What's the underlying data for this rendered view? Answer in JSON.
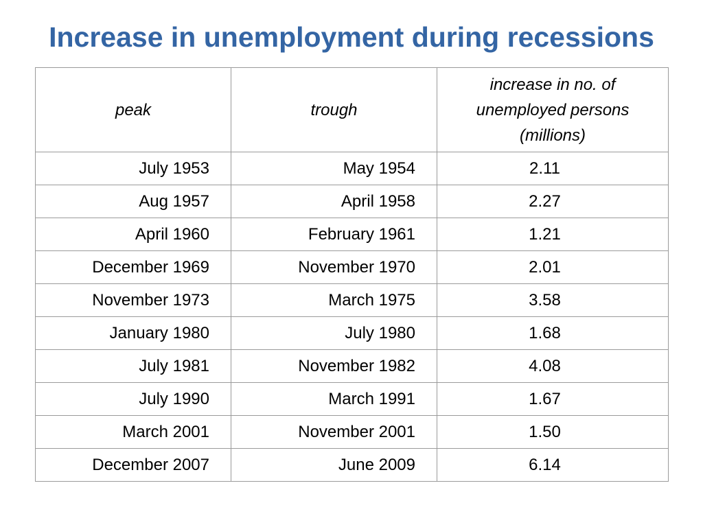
{
  "title": "Increase in unemployment during recessions",
  "table": {
    "headers": {
      "peak": "peak",
      "trough": "trough",
      "increase": "increase in no. of unemployed persons (millions)"
    },
    "rows": [
      {
        "peak": "July 1953",
        "trough": "May 1954",
        "increase": "2.11"
      },
      {
        "peak": "Aug 1957",
        "trough": "April 1958",
        "increase": "2.27"
      },
      {
        "peak": "April 1960",
        "trough": "February 1961",
        "increase": "1.21"
      },
      {
        "peak": "December 1969",
        "trough": "November 1970",
        "increase": "2.01"
      },
      {
        "peak": "November 1973",
        "trough": "March 1975",
        "increase": "3.58"
      },
      {
        "peak": "January 1980",
        "trough": "July 1980",
        "increase": "1.68"
      },
      {
        "peak": "July 1981",
        "trough": "November 1982",
        "increase": "4.08"
      },
      {
        "peak": "July 1990",
        "trough": "March 1991",
        "increase": "1.67"
      },
      {
        "peak": "March 2001",
        "trough": "November 2001",
        "increase": "1.50"
      },
      {
        "peak": "December 2007",
        "trough": "June 2009",
        "increase": "6.14"
      }
    ]
  },
  "colors": {
    "title": "#3465a4",
    "grid": "#9a9a9a",
    "text": "#000000",
    "background": "#ffffff"
  }
}
